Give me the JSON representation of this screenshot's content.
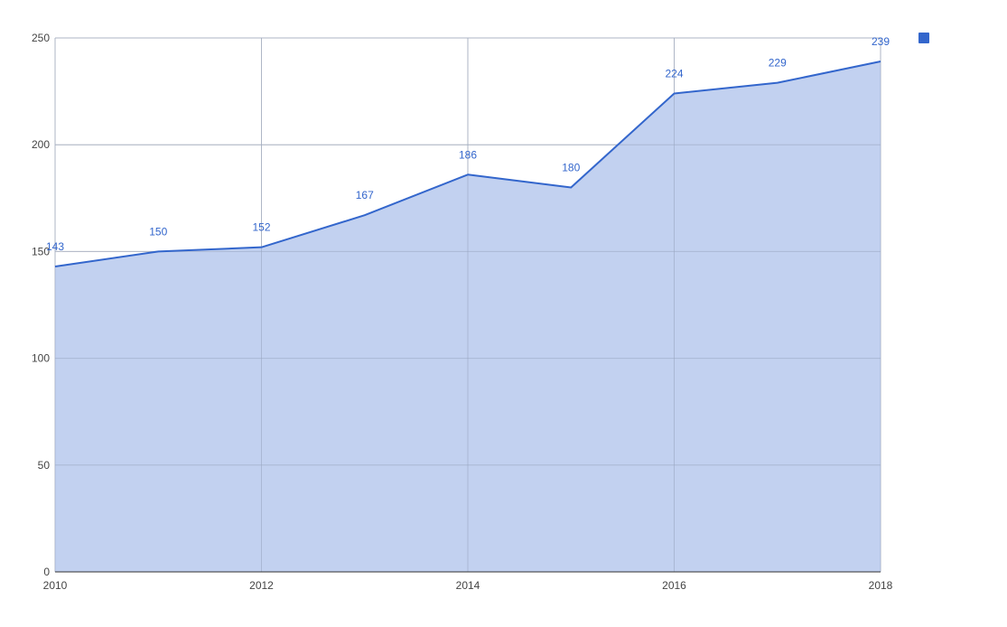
{
  "chart_data": {
    "type": "area",
    "title": "",
    "xlabel": "",
    "ylabel": "",
    "x": [
      2010,
      2011,
      2012,
      2013,
      2014,
      2015,
      2016,
      2017,
      2018
    ],
    "xticks": [
      "2010",
      "2012",
      "2014",
      "2016",
      "2018"
    ],
    "xlim": [
      2010,
      2018
    ],
    "ylim": [
      0,
      250
    ],
    "yticks": [
      "0",
      "50",
      "100",
      "150",
      "200",
      "250"
    ],
    "series": [
      {
        "values": [
          143,
          150,
          152,
          167,
          186,
          180,
          224,
          229,
          239
        ],
        "color": "#3366cc",
        "fill": "#c2d1f0",
        "data_labels": [
          "143",
          "150",
          "152",
          "167",
          "186",
          "180",
          "224",
          "229",
          "239"
        ]
      }
    ],
    "grid": true,
    "legend": "top-right"
  },
  "colors": {
    "series": "#3366cc",
    "area_fill": "#c2d1f0",
    "grid": "#cccccc",
    "axis": "#333333",
    "tick_text": "#444444",
    "label_text": "#3366cc"
  }
}
